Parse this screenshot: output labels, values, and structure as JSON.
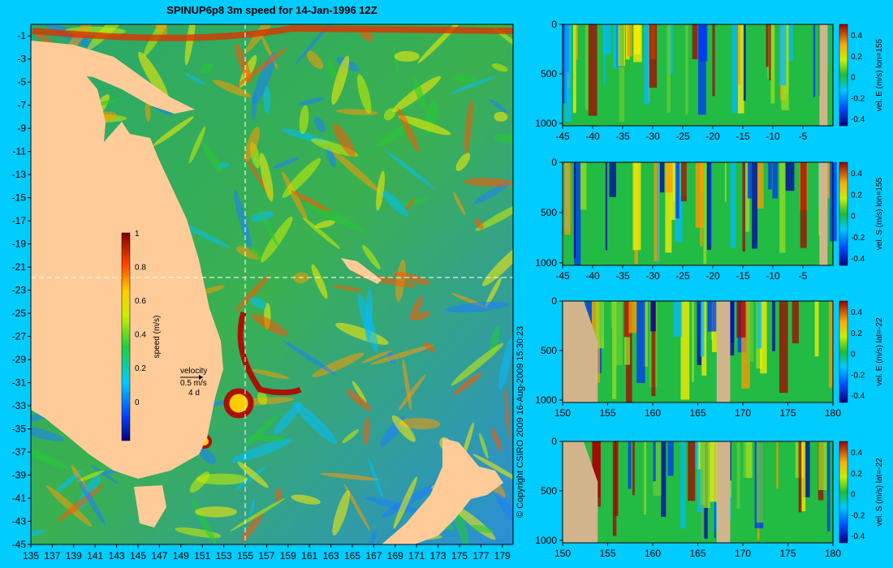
{
  "title": "SPINUP6p8 3m speed for 14-Jan-1996 12Z",
  "copyright": "© Copyright CSIRO 2009   16-Aug-2009 15:30:23",
  "colors": {
    "background": "#00ccff",
    "land": "#ffcc99",
    "section_land": "#d2b48c",
    "crosshair": "#ffffff"
  },
  "chart_data": [
    {
      "type": "heatmap",
      "name": "map",
      "xticks": [
        "135",
        "137",
        "139",
        "141",
        "143",
        "145",
        "147",
        "149",
        "151",
        "153",
        "155",
        "157",
        "159",
        "161",
        "163",
        "165",
        "167",
        "169",
        "171",
        "173",
        "175",
        "177",
        "179"
      ],
      "yticks": [
        "-1",
        "-3",
        "-5",
        "-7",
        "-9",
        "-11",
        "-13",
        "-15",
        "-17",
        "-19",
        "-21",
        "-23",
        "-25",
        "-27",
        "-29",
        "-31",
        "-33",
        "-35",
        "-37",
        "-39",
        "-41",
        "-43",
        "-45"
      ],
      "xlim": [
        135,
        180
      ],
      "ylim": [
        -45,
        0
      ],
      "crosshair": {
        "lon": 155,
        "lat": -22
      },
      "colorbar": {
        "label": "speed (m/s)",
        "min": 0,
        "max": 1,
        "ticks": [
          "1",
          "0.8",
          "0.6",
          "0.4",
          "0.2",
          "0"
        ]
      },
      "velocity_key": {
        "label": "velocity",
        "value": "0.5 m/s",
        "stride": "4 d"
      }
    },
    {
      "type": "heatmap",
      "name": "section-e-lon155",
      "xticks": [
        "-45",
        "-40",
        "-35",
        "-30",
        "-25",
        "-20",
        "-15",
        "-10",
        "-5"
      ],
      "yticks": [
        "0",
        "500",
        "1000"
      ],
      "colorbar": {
        "label": "vel. E (m/s) lon=155",
        "ticks": [
          "0.4",
          "0.2",
          "0",
          "-0.2",
          "-0.4"
        ]
      }
    },
    {
      "type": "heatmap",
      "name": "section-s-lon155",
      "xticks": [
        "-45",
        "-40",
        "-35",
        "-30",
        "-25",
        "-20",
        "-15",
        "-10",
        "-5"
      ],
      "yticks": [
        "0",
        "500",
        "1000"
      ],
      "colorbar": {
        "label": "vel. S (m/s) lon=155",
        "ticks": [
          "0.4",
          "0.2",
          "0",
          "-0.2",
          "-0.4"
        ]
      }
    },
    {
      "type": "heatmap",
      "name": "section-e-lat-22",
      "xticks": [
        "150",
        "155",
        "160",
        "165",
        "170",
        "175",
        "180"
      ],
      "yticks": [
        "0",
        "500",
        "1000"
      ],
      "colorbar": {
        "label": "vel. E (m/s) lat=-22",
        "ticks": [
          "0.4",
          "0.2",
          "0",
          "-0.2",
          "-0.4"
        ]
      }
    },
    {
      "type": "heatmap",
      "name": "section-s-lat-22",
      "xticks": [
        "150",
        "155",
        "160",
        "165",
        "170",
        "175",
        "180"
      ],
      "yticks": [
        "0",
        "500",
        "1000"
      ],
      "colorbar": {
        "label": "vel. S (m/s) lat=-22",
        "ticks": [
          "0.4",
          "0.2",
          "0",
          "-0.2",
          "-0.4"
        ]
      }
    }
  ]
}
